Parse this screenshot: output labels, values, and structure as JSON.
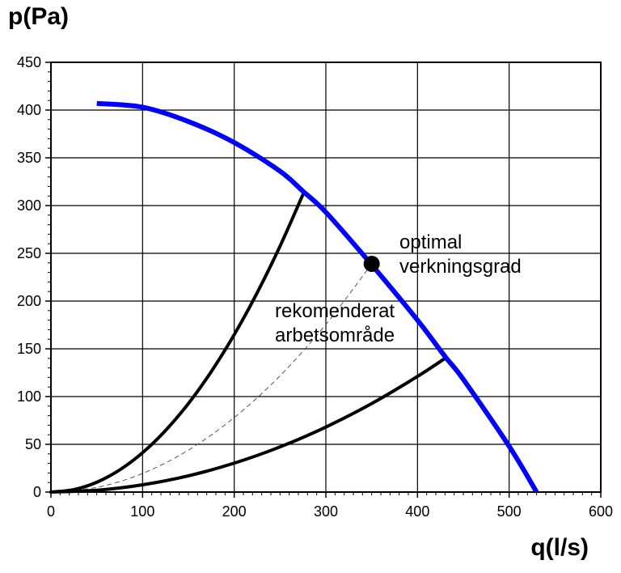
{
  "chart_data": {
    "type": "line",
    "title": "",
    "xlabel": "q(l/s)",
    "ylabel": "p(Pa)",
    "xlim": [
      0,
      600
    ],
    "ylim": [
      0,
      450
    ],
    "grid": true,
    "xticks": [
      0,
      100,
      200,
      300,
      400,
      500,
      600
    ],
    "yticks": [
      0,
      50,
      100,
      150,
      200,
      250,
      300,
      350,
      400,
      450
    ],
    "colors": {
      "fan_curve": "#0000ff",
      "system": "#000000",
      "optimal": "#555555"
    },
    "series": [
      {
        "name": "fan-curve",
        "style": "thick-blue",
        "x": [
          50,
          100,
          150,
          200,
          250,
          275,
          300,
          350,
          400,
          430,
          450,
          500,
          530
        ],
        "y": [
          407,
          403,
          388,
          366,
          336,
          315,
          293,
          238,
          180,
          142,
          118,
          48,
          0
        ]
      },
      {
        "name": "system-upper",
        "style": "solid-black",
        "x": [
          0,
          25,
          50,
          75,
          100,
          125,
          150,
          175,
          200,
          225,
          250,
          275
        ],
        "y": [
          0,
          2.6,
          10.3,
          23.2,
          41.2,
          64.4,
          92.7,
          126.2,
          164.8,
          208.6,
          257.5,
          311.6
        ]
      },
      {
        "name": "system-optimal",
        "style": "dashed-thin",
        "x": [
          0,
          50,
          100,
          150,
          200,
          250,
          300,
          350
        ],
        "y": [
          0,
          4.9,
          19.5,
          43.9,
          78.0,
          121.8,
          175.5,
          238.8
        ]
      },
      {
        "name": "system-lower",
        "style": "solid-black",
        "x": [
          0,
          50,
          100,
          150,
          200,
          250,
          300,
          350,
          400,
          430
        ],
        "y": [
          0,
          1.9,
          7.6,
          17.0,
          30.3,
          47.3,
          68.1,
          92.7,
          121.1,
          140
        ]
      }
    ],
    "points": [
      {
        "name": "optimal-point",
        "x": 350,
        "y": 239
      }
    ],
    "annotations": {
      "optimal_line1": "optimal",
      "optimal_line2": "verkningsgrad",
      "range_line1": "rekomenderat",
      "range_line2": "arbetsområde"
    }
  }
}
